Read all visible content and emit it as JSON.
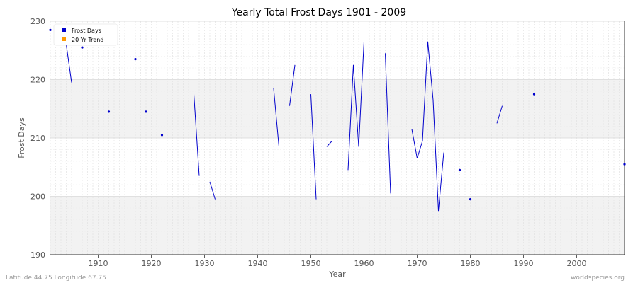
{
  "chart_data": {
    "type": "line",
    "title": "Yearly Total Frost Days 1901 - 2009",
    "xlabel": "Year",
    "ylabel": "Frost Days",
    "xlim": [
      1901,
      2009
    ],
    "ylim": [
      190,
      230
    ],
    "xticks": [
      1910,
      1920,
      1930,
      1940,
      1950,
      1960,
      1970,
      1980,
      1990,
      2000
    ],
    "yticks": [
      190,
      200,
      210,
      220,
      230
    ],
    "legend_position": "top-left",
    "grid": true,
    "series": [
      {
        "name": "Frost Days",
        "color": "#0000cc",
        "points": [
          [
            1901,
            228.5
          ],
          [
            1904,
            226
          ],
          [
            1905,
            219.5
          ],
          [
            1907,
            225.5
          ],
          [
            1912,
            214.5
          ],
          [
            1917,
            223.5
          ],
          [
            1919,
            214.5
          ],
          [
            1922,
            210.5
          ],
          [
            1928,
            217.5
          ],
          [
            1929,
            203.5
          ],
          [
            1931,
            202.5
          ],
          [
            1932,
            199.5
          ],
          [
            1943,
            218.5
          ],
          [
            1944,
            208.5
          ],
          [
            1946,
            215.5
          ],
          [
            1947,
            222.5
          ],
          [
            1950,
            217.5
          ],
          [
            1951,
            199.5
          ],
          [
            1953,
            208.5
          ],
          [
            1954,
            209.5
          ],
          [
            1957,
            204.5
          ],
          [
            1958,
            222.5
          ],
          [
            1959,
            208.5
          ],
          [
            1960,
            226.5
          ],
          [
            1964,
            224.5
          ],
          [
            1965,
            200.5
          ],
          [
            1969,
            211.5
          ],
          [
            1970,
            206.5
          ],
          [
            1971,
            209.5
          ],
          [
            1972,
            226.5
          ],
          [
            1973,
            216.5
          ],
          [
            1974,
            197.5
          ],
          [
            1975,
            207.5
          ],
          [
            1978,
            204.5
          ],
          [
            1980,
            199.5
          ],
          [
            1985,
            212.5
          ],
          [
            1986,
            215.5
          ],
          [
            1992,
            217.5
          ],
          [
            2009,
            205.5
          ]
        ]
      },
      {
        "name": "20 Yr Trend",
        "color": "#ff9900",
        "points": []
      }
    ]
  },
  "footer": {
    "location": "Latitude 44.75 Longitude 67.75",
    "source": "worldspecies.org"
  }
}
